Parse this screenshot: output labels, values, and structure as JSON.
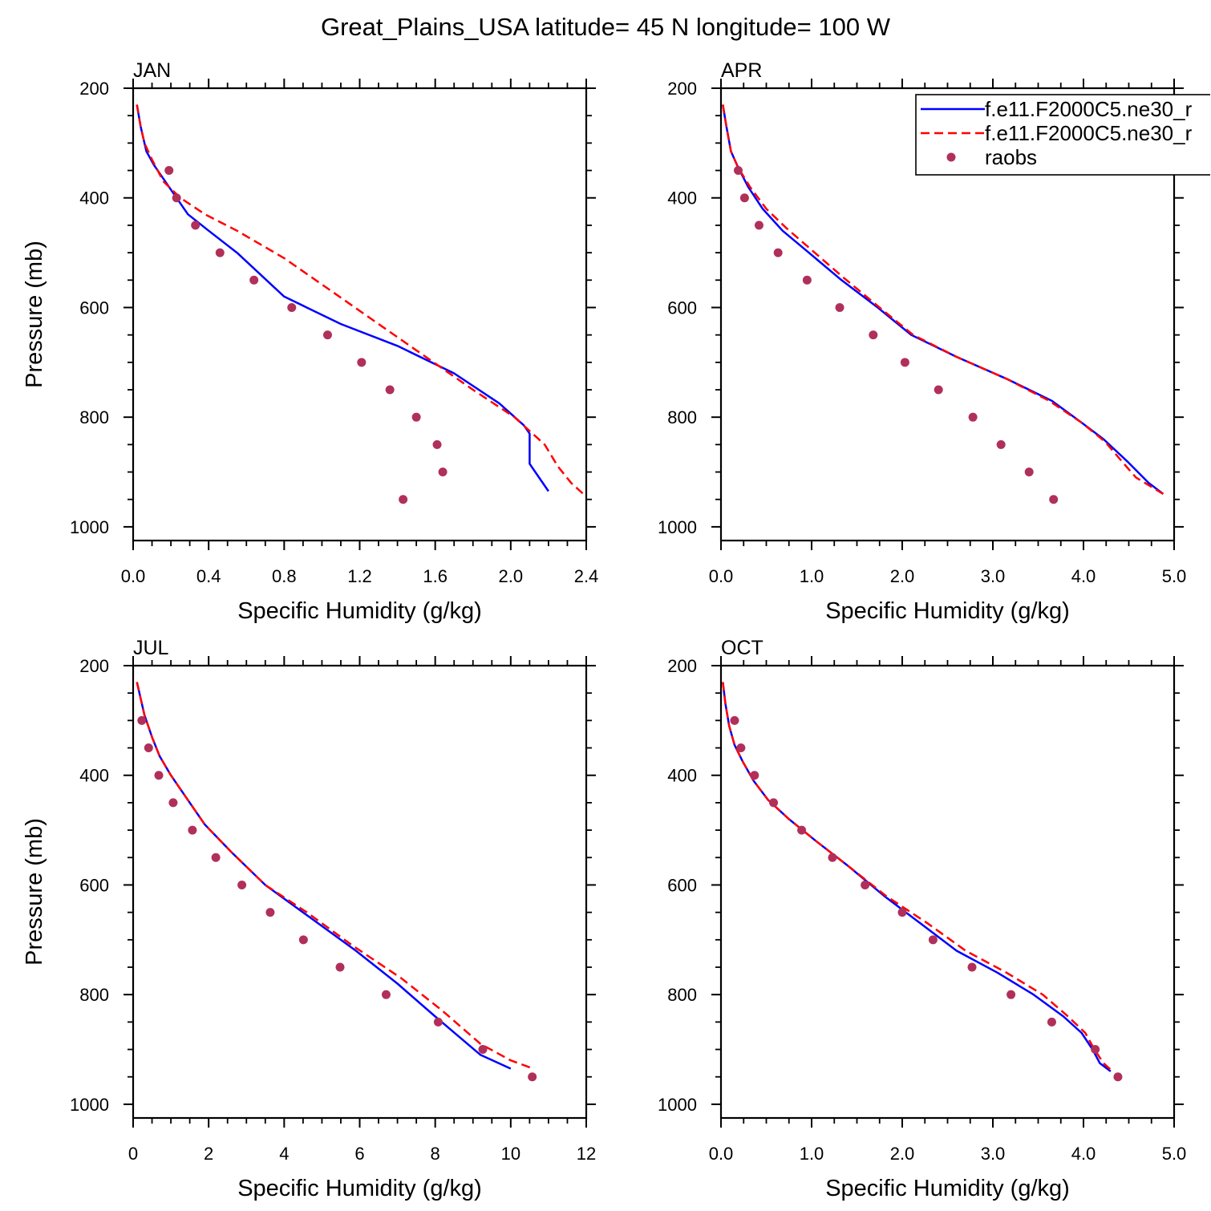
{
  "title": "Great_Plains_USA  latitude= 45 N longitude= 100 W",
  "legend": {
    "entries": [
      {
        "label": "f.e11.F2000C5.ne30_r",
        "color": "#0000ff",
        "style": "solid"
      },
      {
        "label": "f.e11.F2000C5.ne30_r",
        "color": "#ff0000",
        "style": "dashed"
      },
      {
        "label": "raobs",
        "color": "#b0305a",
        "style": "marker"
      }
    ]
  },
  "chart_data": [
    {
      "type": "line",
      "panel_label": "JAN",
      "xlabel": "Specific Humidity (g/kg)",
      "ylabel": "Pressure (mb)",
      "xlim": [
        0,
        2.4
      ],
      "ylim": [
        1000,
        200
      ],
      "y_reversed": true,
      "xticks": [
        "0.0",
        "0.4",
        "0.8",
        "1.2",
        "1.6",
        "2.0",
        "2.4"
      ],
      "yticks": [
        "200",
        "400",
        "600",
        "800",
        "1000"
      ],
      "series": [
        {
          "type": "line",
          "color": "#0000ff",
          "dash": "solid",
          "x": [
            0.02,
            0.04,
            0.07,
            0.11,
            0.16,
            0.22,
            0.29,
            0.4,
            0.55,
            0.8,
            1.1,
            1.4,
            1.7,
            1.94,
            2.07,
            2.1,
            2.1,
            2.14,
            2.2
          ],
          "y": [
            230,
            270,
            315,
            340,
            365,
            395,
            430,
            460,
            500,
            580,
            630,
            670,
            720,
            775,
            815,
            830,
            885,
            905,
            935
          ]
        },
        {
          "type": "line",
          "color": "#ff0000",
          "dash": "dashed",
          "x": [
            0.02,
            0.04,
            0.06,
            0.1,
            0.16,
            0.25,
            0.38,
            0.55,
            0.8,
            1.05,
            1.3,
            1.55,
            1.8,
            2.02,
            2.18,
            2.25,
            2.32,
            2.4
          ],
          "y": [
            230,
            270,
            300,
            330,
            370,
            400,
            430,
            460,
            510,
            570,
            630,
            690,
            750,
            800,
            850,
            890,
            920,
            945
          ]
        },
        {
          "type": "scatter",
          "color": "#b0305a",
          "x": [
            0.19,
            0.23,
            0.33,
            0.46,
            0.64,
            0.84,
            1.03,
            1.21,
            1.36,
            1.5,
            1.61,
            1.64,
            1.43
          ],
          "y": [
            350,
            400,
            450,
            500,
            550,
            600,
            650,
            700,
            750,
            800,
            850,
            900,
            950
          ]
        }
      ]
    },
    {
      "type": "line",
      "panel_label": "APR",
      "xlabel": "Specific Humidity (g/kg)",
      "ylabel": "",
      "xlim": [
        0,
        5
      ],
      "ylim": [
        1000,
        200
      ],
      "y_reversed": true,
      "xticks": [
        "0.0",
        "1.0",
        "2.0",
        "3.0",
        "4.0",
        "5.0"
      ],
      "yticks": [
        "200",
        "400",
        "600",
        "800",
        "1000"
      ],
      "series": [
        {
          "type": "line",
          "color": "#0000ff",
          "dash": "solid",
          "x": [
            0.02,
            0.06,
            0.11,
            0.19,
            0.3,
            0.46,
            0.68,
            0.97,
            1.33,
            1.73,
            2.1,
            2.6,
            3.15,
            3.65,
            3.98,
            4.22,
            4.48,
            4.72,
            4.88
          ],
          "y": [
            230,
            270,
            315,
            345,
            380,
            420,
            460,
            500,
            550,
            600,
            650,
            690,
            730,
            770,
            810,
            840,
            880,
            920,
            940
          ]
        },
        {
          "type": "line",
          "color": "#ff0000",
          "dash": "dashed",
          "x": [
            0.02,
            0.06,
            0.11,
            0.19,
            0.32,
            0.5,
            0.72,
            1.0,
            1.35,
            1.75,
            2.12,
            2.6,
            3.15,
            3.62,
            3.98,
            4.24,
            4.42,
            4.58,
            4.88
          ],
          "y": [
            230,
            270,
            315,
            345,
            380,
            420,
            455,
            495,
            545,
            600,
            650,
            690,
            730,
            770,
            810,
            845,
            880,
            910,
            940
          ]
        },
        {
          "type": "scatter",
          "color": "#b0305a",
          "x": [
            0.19,
            0.26,
            0.42,
            0.63,
            0.95,
            1.31,
            1.68,
            2.03,
            2.4,
            2.78,
            3.09,
            3.4,
            3.67
          ],
          "y": [
            350,
            400,
            450,
            500,
            550,
            600,
            650,
            700,
            750,
            800,
            850,
            900,
            950
          ]
        }
      ]
    },
    {
      "type": "line",
      "panel_label": "JUL",
      "xlabel": "Specific Humidity (g/kg)",
      "ylabel": "Pressure (mb)",
      "xlim": [
        0,
        12
      ],
      "ylim": [
        1000,
        200
      ],
      "y_reversed": true,
      "xticks": [
        "0",
        "2",
        "4",
        "6",
        "8",
        "10",
        "12"
      ],
      "yticks": [
        "200",
        "400",
        "600",
        "800",
        "1000"
      ],
      "series": [
        {
          "type": "line",
          "color": "#0000ff",
          "dash": "solid",
          "x": [
            0.1,
            0.3,
            0.5,
            0.7,
            1.0,
            1.4,
            1.9,
            2.6,
            3.5,
            4.7,
            5.9,
            7.0,
            8.0,
            9.2,
            10.0
          ],
          "y": [
            230,
            290,
            330,
            365,
            400,
            440,
            490,
            540,
            600,
            660,
            720,
            780,
            840,
            910,
            935
          ]
        },
        {
          "type": "line",
          "color": "#ff0000",
          "dash": "dashed",
          "x": [
            0.1,
            0.3,
            0.5,
            0.7,
            1.0,
            1.4,
            1.9,
            2.6,
            3.5,
            4.6,
            5.8,
            7.1,
            8.2,
            9.2,
            10.0,
            10.6
          ],
          "y": [
            230,
            290,
            330,
            365,
            400,
            440,
            490,
            540,
            600,
            650,
            710,
            770,
            830,
            890,
            920,
            935
          ]
        },
        {
          "type": "scatter",
          "color": "#b0305a",
          "x": [
            0.23,
            0.41,
            0.68,
            1.06,
            1.57,
            2.19,
            2.88,
            3.63,
            4.51,
            5.48,
            6.7,
            8.08,
            9.26,
            10.57
          ],
          "y": [
            300,
            350,
            400,
            450,
            500,
            550,
            600,
            650,
            700,
            750,
            800,
            850,
            900,
            950
          ]
        }
      ]
    },
    {
      "type": "line",
      "panel_label": "OCT",
      "xlabel": "Specific Humidity (g/kg)",
      "ylabel": "",
      "xlim": [
        0,
        5
      ],
      "ylim": [
        1000,
        200
      ],
      "y_reversed": true,
      "xticks": [
        "0.0",
        "1.0",
        "2.0",
        "3.0",
        "4.0",
        "5.0"
      ],
      "yticks": [
        "200",
        "400",
        "600",
        "800",
        "1000"
      ],
      "series": [
        {
          "type": "line",
          "color": "#0000ff",
          "dash": "solid",
          "x": [
            0.02,
            0.05,
            0.09,
            0.15,
            0.24,
            0.36,
            0.52,
            0.75,
            1.05,
            1.4,
            1.8,
            2.2,
            2.6,
            3.05,
            3.45,
            3.78,
            3.98,
            4.1,
            4.18,
            4.3
          ],
          "y": [
            230,
            270,
            310,
            345,
            375,
            410,
            445,
            480,
            520,
            565,
            620,
            670,
            720,
            760,
            800,
            840,
            870,
            900,
            925,
            940
          ]
        },
        {
          "type": "line",
          "color": "#ff0000",
          "dash": "dashed",
          "x": [
            0.02,
            0.05,
            0.09,
            0.15,
            0.24,
            0.36,
            0.52,
            0.75,
            1.05,
            1.4,
            1.82,
            2.28,
            2.7,
            3.15,
            3.55,
            3.83,
            4.02,
            4.12,
            4.22,
            4.32
          ],
          "y": [
            230,
            270,
            310,
            345,
            375,
            410,
            445,
            480,
            520,
            565,
            620,
            670,
            720,
            760,
            800,
            840,
            870,
            900,
            925,
            940
          ]
        },
        {
          "type": "scatter",
          "color": "#b0305a",
          "x": [
            0.15,
            0.22,
            0.37,
            0.58,
            0.89,
            1.23,
            1.59,
            2.0,
            2.34,
            2.77,
            3.2,
            3.65,
            4.13,
            4.38
          ],
          "y": [
            300,
            350,
            400,
            450,
            500,
            550,
            600,
            650,
            700,
            750,
            800,
            850,
            900,
            950
          ]
        }
      ]
    }
  ]
}
